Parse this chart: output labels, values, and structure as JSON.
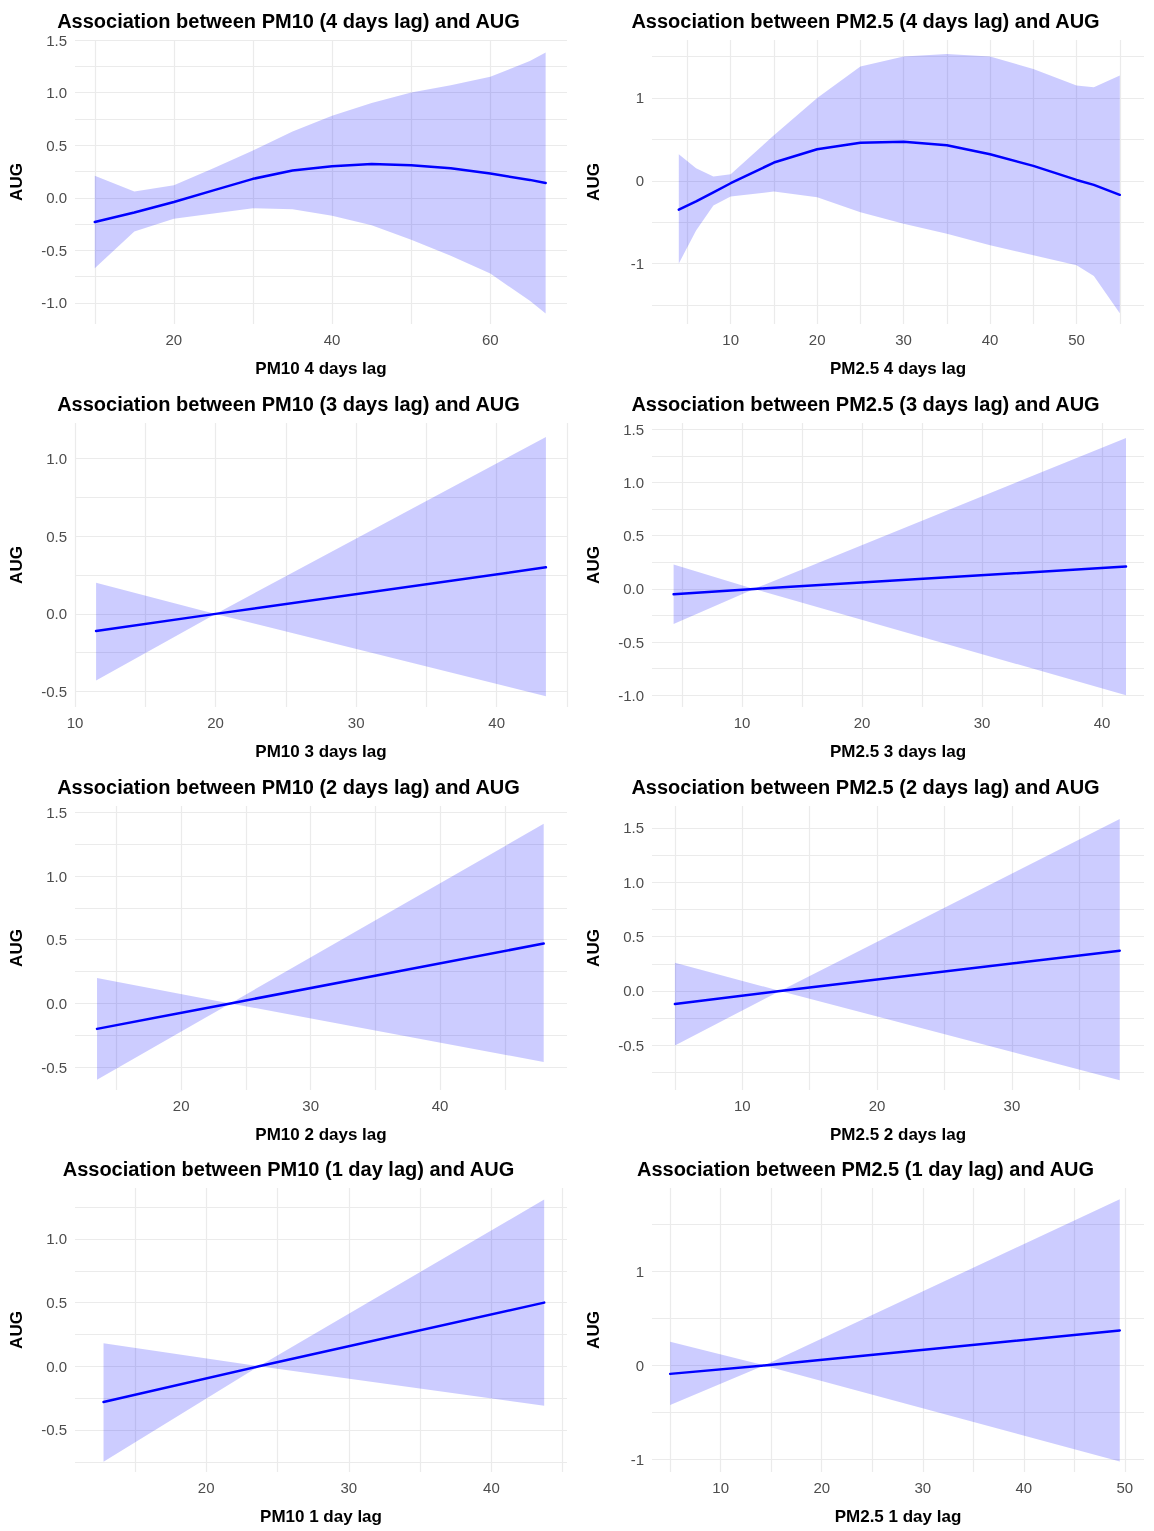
{
  "chart_data": [
    {
      "type": "line",
      "title": "Association between PM10 (4 days lag) and AUG",
      "xlabel": "PM10 4 days lag",
      "ylabel": "AUG",
      "grid": true,
      "marker": "none",
      "line_style": "solid",
      "xlim": [
        7.5,
        69.7
      ],
      "ylim": [
        -1.2,
        1.5
      ],
      "xticks": [
        {
          "value": 10,
          "label": null
        },
        20,
        {
          "value": 30,
          "label": null
        },
        40,
        {
          "value": 50,
          "label": null
        },
        60
      ],
      "yticks": [
        {
          "value": -1,
          "label": "-1.0"
        },
        {
          "value": -0.75,
          "label": null
        },
        {
          "value": -0.5,
          "label": "-0.5"
        },
        {
          "value": -0.25,
          "label": null
        },
        {
          "value": 0,
          "label": "0.0"
        },
        {
          "value": 0.25,
          "label": null
        },
        {
          "value": 0.5,
          "label": "0.5"
        },
        {
          "value": 0.75,
          "label": null
        },
        {
          "value": 1,
          "label": "1.0"
        },
        {
          "value": 1.25,
          "label": null
        },
        {
          "value": 1.5,
          "label": "1.5"
        }
      ],
      "x": [
        10,
        15,
        20,
        25,
        30,
        35,
        40,
        45,
        50,
        55,
        60,
        65,
        67
      ],
      "series": [
        {
          "color": "#0000ff",
          "values": [
            -0.23,
            -0.14,
            -0.04,
            0.07,
            0.18,
            0.26,
            0.3,
            0.32,
            0.31,
            0.28,
            0.23,
            0.17,
            0.14
          ],
          "lower": [
            -0.67,
            -0.32,
            -0.2,
            -0.15,
            -0.1,
            -0.11,
            -0.17,
            -0.26,
            -0.4,
            -0.55,
            -0.72,
            -0.98,
            -1.1
          ],
          "upper": [
            0.21,
            0.06,
            0.12,
            0.28,
            0.45,
            0.63,
            0.78,
            0.9,
            1.0,
            1.07,
            1.15,
            1.3,
            1.38
          ]
        }
      ]
    },
    {
      "type": "line",
      "title": "Association between PM2.5 (4 days lag) and AUG",
      "xlabel": "PM2.5 4 days lag",
      "ylabel": "AUG",
      "grid": true,
      "marker": "none",
      "line_style": "solid",
      "xlim": [
        0.9,
        57.8
      ],
      "ylim": [
        -1.73,
        1.7
      ],
      "xticks": [
        {
          "value": 5,
          "label": null
        },
        10,
        {
          "value": 15,
          "label": null
        },
        20,
        {
          "value": 25,
          "label": null
        },
        30,
        {
          "value": 35,
          "label": null
        },
        40,
        {
          "value": 45,
          "label": null
        },
        50,
        {
          "value": 55,
          "label": null
        }
      ],
      "yticks": [
        {
          "value": -1.5,
          "label": null
        },
        -1,
        {
          "value": -0.5,
          "label": null
        },
        0,
        {
          "value": 0.5,
          "label": null
        },
        1,
        {
          "value": 1.5,
          "label": null
        }
      ],
      "x": [
        4,
        6,
        8,
        10,
        15,
        20,
        25,
        30,
        35,
        40,
        45,
        50,
        52,
        55
      ],
      "series": [
        {
          "color": "#0000ff",
          "values": [
            -0.35,
            -0.25,
            -0.14,
            -0.03,
            0.22,
            0.38,
            0.46,
            0.47,
            0.43,
            0.32,
            0.18,
            0.01,
            -0.05,
            -0.17
          ],
          "lower": [
            -1.0,
            -0.6,
            -0.3,
            -0.19,
            -0.13,
            -0.2,
            -0.38,
            -0.52,
            -0.64,
            -0.78,
            -0.9,
            -1.02,
            -1.15,
            -1.6
          ],
          "upper": [
            0.32,
            0.15,
            0.05,
            0.08,
            0.55,
            1.0,
            1.38,
            1.5,
            1.53,
            1.5,
            1.35,
            1.15,
            1.13,
            1.27
          ]
        }
      ]
    },
    {
      "type": "line",
      "title": "Association between PM10 (3 days lag) and AUG",
      "xlabel": "PM10 3 days lag",
      "ylabel": "AUG",
      "grid": true,
      "marker": "none",
      "line_style": "solid",
      "xlim": [
        10,
        45
      ],
      "ylim": [
        -0.6,
        1.23
      ],
      "xticks": [
        10,
        {
          "value": 15,
          "label": null
        },
        20,
        {
          "value": 25,
          "label": null
        },
        30,
        {
          "value": 35,
          "label": null
        },
        40,
        {
          "value": 45,
          "label": null
        }
      ],
      "yticks": [
        {
          "value": -0.5,
          "label": "-0.5"
        },
        {
          "value": -0.25,
          "label": null
        },
        {
          "value": 0,
          "label": "0.0"
        },
        {
          "value": 0.25,
          "label": null
        },
        {
          "value": 0.5,
          "label": "0.5"
        },
        {
          "value": 0.75,
          "label": null
        },
        {
          "value": 1,
          "label": "1.0"
        }
      ],
      "x": [
        11.5,
        20,
        43.5
      ],
      "series": [
        {
          "color": "#0000ff",
          "values": [
            -0.11,
            0,
            0.3
          ],
          "lower": [
            -0.43,
            0,
            -0.53
          ],
          "upper": [
            0.2,
            0,
            1.14
          ]
        }
      ]
    },
    {
      "type": "line",
      "title": "Association between PM2.5 (3 days lag) and AUG",
      "xlabel": "PM2.5 3 days lag",
      "ylabel": "AUG",
      "grid": true,
      "marker": "none",
      "line_style": "solid",
      "xlim": [
        2.5,
        43.5
      ],
      "ylim": [
        -1.11,
        1.56
      ],
      "xticks": [
        {
          "value": 5,
          "label": null
        },
        10,
        {
          "value": 15,
          "label": null
        },
        20,
        {
          "value": 25,
          "label": null
        },
        30,
        {
          "value": 35,
          "label": null
        },
        40
      ],
      "yticks": [
        {
          "value": -1,
          "label": "-1.0"
        },
        {
          "value": -0.75,
          "label": null
        },
        {
          "value": -0.5,
          "label": "-0.5"
        },
        {
          "value": -0.25,
          "label": null
        },
        {
          "value": 0,
          "label": "0.0"
        },
        {
          "value": 0.25,
          "label": null
        },
        {
          "value": 0.5,
          "label": "0.5"
        },
        {
          "value": 0.75,
          "label": null
        },
        {
          "value": 1,
          "label": "1.0"
        },
        {
          "value": 1.25,
          "label": null
        },
        {
          "value": 1.5,
          "label": "1.5"
        }
      ],
      "x": [
        4.3,
        11,
        42
      ],
      "series": [
        {
          "color": "#0000ff",
          "values": [
            -0.05,
            0,
            0.21
          ],
          "lower": [
            -0.33,
            0,
            -1.0
          ],
          "upper": [
            0.23,
            0,
            1.42
          ]
        }
      ]
    },
    {
      "type": "line",
      "title": "Association between PM10 (2 days lag) and AUG",
      "xlabel": "PM10 2 days lag",
      "ylabel": "AUG",
      "grid": true,
      "marker": "none",
      "line_style": "solid",
      "xlim": [
        11.8,
        49.8
      ],
      "ylim": [
        -0.68,
        1.55
      ],
      "xticks": [
        {
          "value": 15,
          "label": null
        },
        20,
        {
          "value": 25,
          "label": null
        },
        30,
        {
          "value": 35,
          "label": null
        },
        40,
        {
          "value": 45,
          "label": null
        }
      ],
      "yticks": [
        {
          "value": -0.5,
          "label": "-0.5"
        },
        {
          "value": -0.25,
          "label": null
        },
        {
          "value": 0,
          "label": "0.0"
        },
        {
          "value": 0.25,
          "label": null
        },
        {
          "value": 0.5,
          "label": "0.5"
        },
        {
          "value": 0.75,
          "label": null
        },
        {
          "value": 1,
          "label": "1.0"
        },
        {
          "value": 1.25,
          "label": null
        },
        {
          "value": 1.5,
          "label": "1.5"
        }
      ],
      "x": [
        13.5,
        23.8,
        48
      ],
      "series": [
        {
          "color": "#0000ff",
          "values": [
            -0.2,
            0,
            0.47
          ],
          "lower": [
            -0.6,
            0,
            -0.46
          ],
          "upper": [
            0.2,
            0,
            1.41
          ]
        }
      ]
    },
    {
      "type": "line",
      "title": "Association between PM2.5 (2 days lag) and AUG",
      "xlabel": "PM2.5 2 days lag",
      "ylabel": "AUG",
      "grid": true,
      "marker": "none",
      "line_style": "solid",
      "xlim": [
        3.3,
        39.8
      ],
      "ylim": [
        -0.91,
        1.7
      ],
      "xticks": [
        {
          "value": 5,
          "label": null
        },
        10,
        {
          "value": 15,
          "label": null
        },
        20,
        {
          "value": 25,
          "label": null
        },
        30,
        {
          "value": 35,
          "label": null
        }
      ],
      "yticks": [
        {
          "value": -0.75,
          "label": null
        },
        {
          "value": -0.5,
          "label": "-0.5"
        },
        {
          "value": -0.25,
          "label": null
        },
        {
          "value": 0,
          "label": "0.0"
        },
        {
          "value": 0.25,
          "label": null
        },
        {
          "value": 0.5,
          "label": "0.5"
        },
        {
          "value": 0.75,
          "label": null
        },
        {
          "value": 1,
          "label": "1.0"
        },
        {
          "value": 1.25,
          "label": null
        },
        {
          "value": 1.5,
          "label": "1.5"
        }
      ],
      "x": [
        5,
        12.8,
        38
      ],
      "series": [
        {
          "color": "#0000ff",
          "values": [
            -0.12,
            0,
            0.37
          ],
          "lower": [
            -0.5,
            0,
            -0.82
          ],
          "upper": [
            0.26,
            0,
            1.58
          ]
        }
      ]
    },
    {
      "type": "line",
      "title": "Association between PM10 (1 day lag) and AUG",
      "xlabel": "PM10 1 day lag",
      "ylabel": "AUG",
      "grid": true,
      "marker": "none",
      "line_style": "solid",
      "xlim": [
        10.8,
        45.3
      ],
      "ylim": [
        -0.83,
        1.4
      ],
      "xticks": [
        {
          "value": 15,
          "label": null
        },
        20,
        {
          "value": 25,
          "label": null
        },
        30,
        {
          "value": 35,
          "label": null
        },
        40,
        {
          "value": 45,
          "label": null
        }
      ],
      "yticks": [
        {
          "value": -0.75,
          "label": null
        },
        {
          "value": -0.5,
          "label": "-0.5"
        },
        {
          "value": -0.25,
          "label": null
        },
        {
          "value": 0,
          "label": "0.0"
        },
        {
          "value": 0.25,
          "label": null
        },
        {
          "value": 0.5,
          "label": "0.5"
        },
        {
          "value": 0.75,
          "label": null
        },
        {
          "value": 1,
          "label": "1.0"
        },
        {
          "value": 1.25,
          "label": null
        }
      ],
      "x": [
        12.8,
        23.7,
        43.7
      ],
      "series": [
        {
          "color": "#0000ff",
          "values": [
            -0.28,
            0,
            0.5
          ],
          "lower": [
            -0.75,
            0,
            -0.31
          ],
          "upper": [
            0.18,
            0,
            1.31
          ]
        }
      ]
    },
    {
      "type": "line",
      "title": "Association between PM2.5 (1 day lag) and AUG",
      "xlabel": "PM2.5 1 day lag",
      "ylabel": "AUG",
      "grid": true,
      "marker": "none",
      "line_style": "solid",
      "xlim": [
        3.2,
        51.9
      ],
      "ylim": [
        -1.13,
        1.88
      ],
      "xticks": [
        {
          "value": 5,
          "label": null
        },
        10,
        {
          "value": 15,
          "label": null
        },
        20,
        {
          "value": 25,
          "label": null
        },
        30,
        {
          "value": 35,
          "label": null
        },
        40,
        {
          "value": 45,
          "label": null
        },
        50
      ],
      "yticks": [
        -1,
        {
          "value": -0.5,
          "label": null
        },
        0,
        {
          "value": 0.5,
          "label": null
        },
        1,
        {
          "value": 1.5,
          "label": null
        }
      ],
      "x": [
        5,
        14.3,
        49.5
      ],
      "series": [
        {
          "color": "#0000ff",
          "values": [
            -0.09,
            0,
            0.37
          ],
          "lower": [
            -0.42,
            0,
            -1.02
          ],
          "upper": [
            0.25,
            0,
            1.76
          ]
        }
      ]
    }
  ]
}
